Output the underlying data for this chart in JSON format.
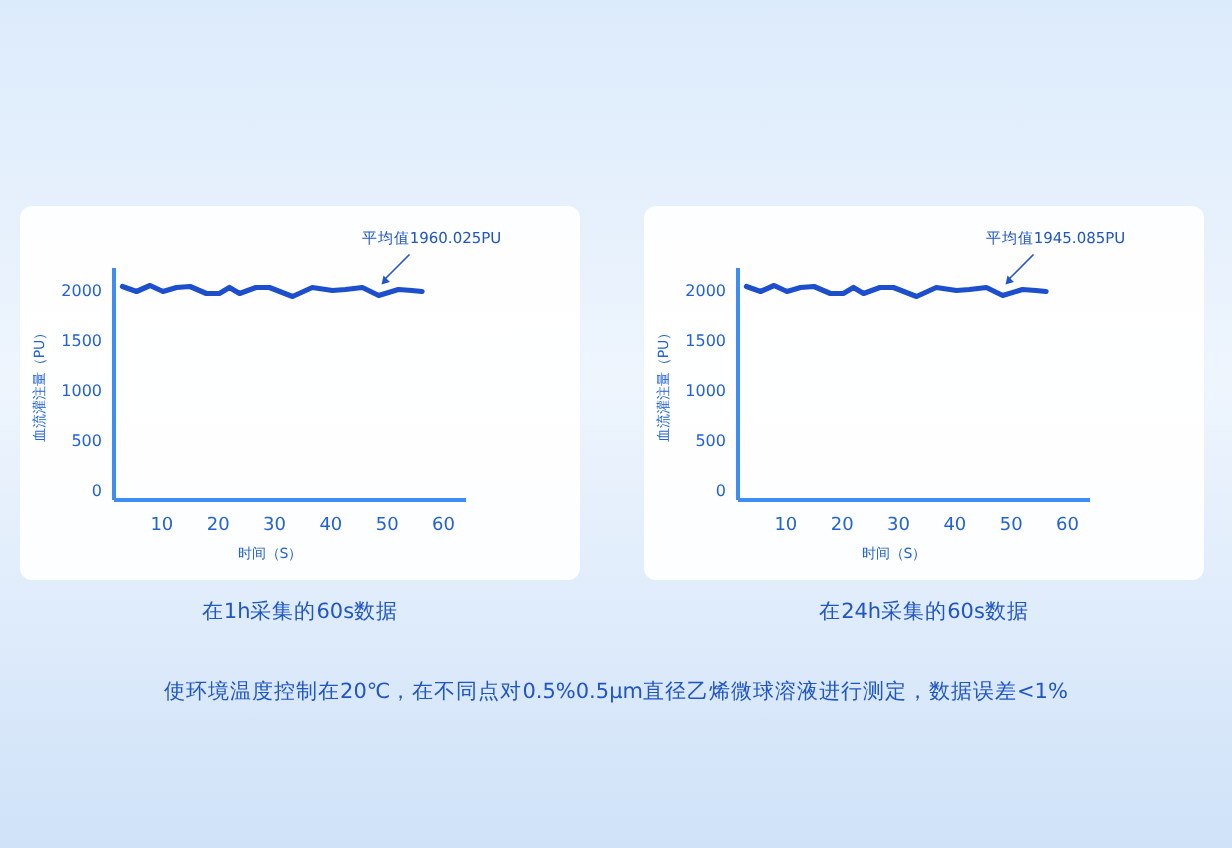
{
  "chart_data": [
    {
      "type": "line",
      "title": "在1h采集的60s数据",
      "xlabel": "时间（S）",
      "ylabel": "血流灌注量（PU）",
      "xlim": [
        1.5,
        64
      ],
      "ylim": [
        -115,
        2205
      ],
      "xticks": [
        10,
        20,
        30,
        40,
        50,
        60
      ],
      "yticks": [
        0,
        500,
        1000,
        1500,
        2000
      ],
      "grid": false,
      "x": [
        3.0,
        5.5,
        7.9,
        10.2,
        12.6,
        15,
        17.9,
        20.2,
        22,
        23.8,
        26.7,
        29.1,
        33.2,
        36.7,
        40.3,
        42.6,
        45.6,
        48.5,
        52,
        54.4,
        56.2
      ],
      "series": [
        {
          "color": "#1d4fcc",
          "values": [
            2020,
            1970,
            2030,
            1970,
            2010,
            2020,
            1950,
            1950,
            2010,
            1950,
            2010,
            2010,
            1920,
            2010,
            1980,
            1990,
            2010,
            1930,
            1990,
            1980,
            1970
          ]
        }
      ],
      "annotations": [
        {
          "text": "平均值1960.025PU",
          "x": 49,
          "y": 2040
        }
      ]
    },
    {
      "type": "line",
      "title": "在24h采集的60s数据",
      "xlabel": "时间（S）",
      "ylabel": "血流灌注量（PU）",
      "xlim": [
        1.5,
        64
      ],
      "ylim": [
        -115,
        2205
      ],
      "xticks": [
        10,
        20,
        30,
        40,
        50,
        60
      ],
      "yticks": [
        0,
        500,
        1000,
        1500,
        2000
      ],
      "grid": false,
      "x": [
        3.0,
        5.5,
        7.9,
        10.2,
        12.6,
        15,
        17.9,
        20.2,
        22,
        23.8,
        26.7,
        29.1,
        33.2,
        36.7,
        40.3,
        42.6,
        45.6,
        48.5,
        52,
        54.4,
        56.2
      ],
      "series": [
        {
          "color": "#1d4fcc",
          "values": [
            2020,
            1970,
            2030,
            1970,
            2010,
            2020,
            1950,
            1950,
            2010,
            1950,
            2010,
            2010,
            1920,
            2010,
            1980,
            1990,
            2010,
            1930,
            1990,
            1980,
            1970
          ]
        }
      ],
      "annotations": [
        {
          "text": "平均值1945.085PU",
          "x": 49,
          "y": 2040
        },
        "使环境温度控制在20℃，在不同点对0.5%0.5μm直径乙烯微球溶液进行测定，数据误差<1%"
      ]
    }
  ]
}
